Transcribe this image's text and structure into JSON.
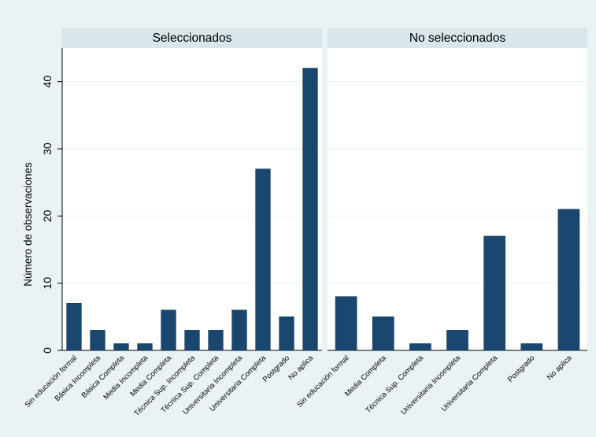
{
  "chart_data": {
    "type": "bar",
    "ylabel": "Número de observaciones",
    "ylim": [
      0,
      45
    ],
    "yticks": [
      0,
      10,
      20,
      30,
      40
    ],
    "grid": true,
    "bar_color": "#1a476f",
    "panels": [
      {
        "title": "Seleccionados",
        "categories": [
          "Sin educación formal",
          "Básica Incompleta",
          "Básica Completa",
          "Media Incompleta",
          "Media Completa",
          "Técnica Sup. Incompleta",
          "Técnica Sup. Completa",
          "Universitaria Incompleta",
          "Universitaria Completa",
          "Postgrado",
          "No aplica"
        ],
        "values": [
          7,
          3,
          1,
          1,
          6,
          3,
          3,
          6,
          27,
          5,
          42
        ]
      },
      {
        "title": "No seleccionados",
        "categories": [
          "Sin educación formal",
          "Media Completa",
          "Técnica Sup. Completa",
          "Universitaria Incompleta",
          "Universitaria Completa",
          "Postgrado",
          "No aplica"
        ],
        "values": [
          8,
          5,
          1,
          3,
          17,
          1,
          21
        ]
      }
    ]
  }
}
